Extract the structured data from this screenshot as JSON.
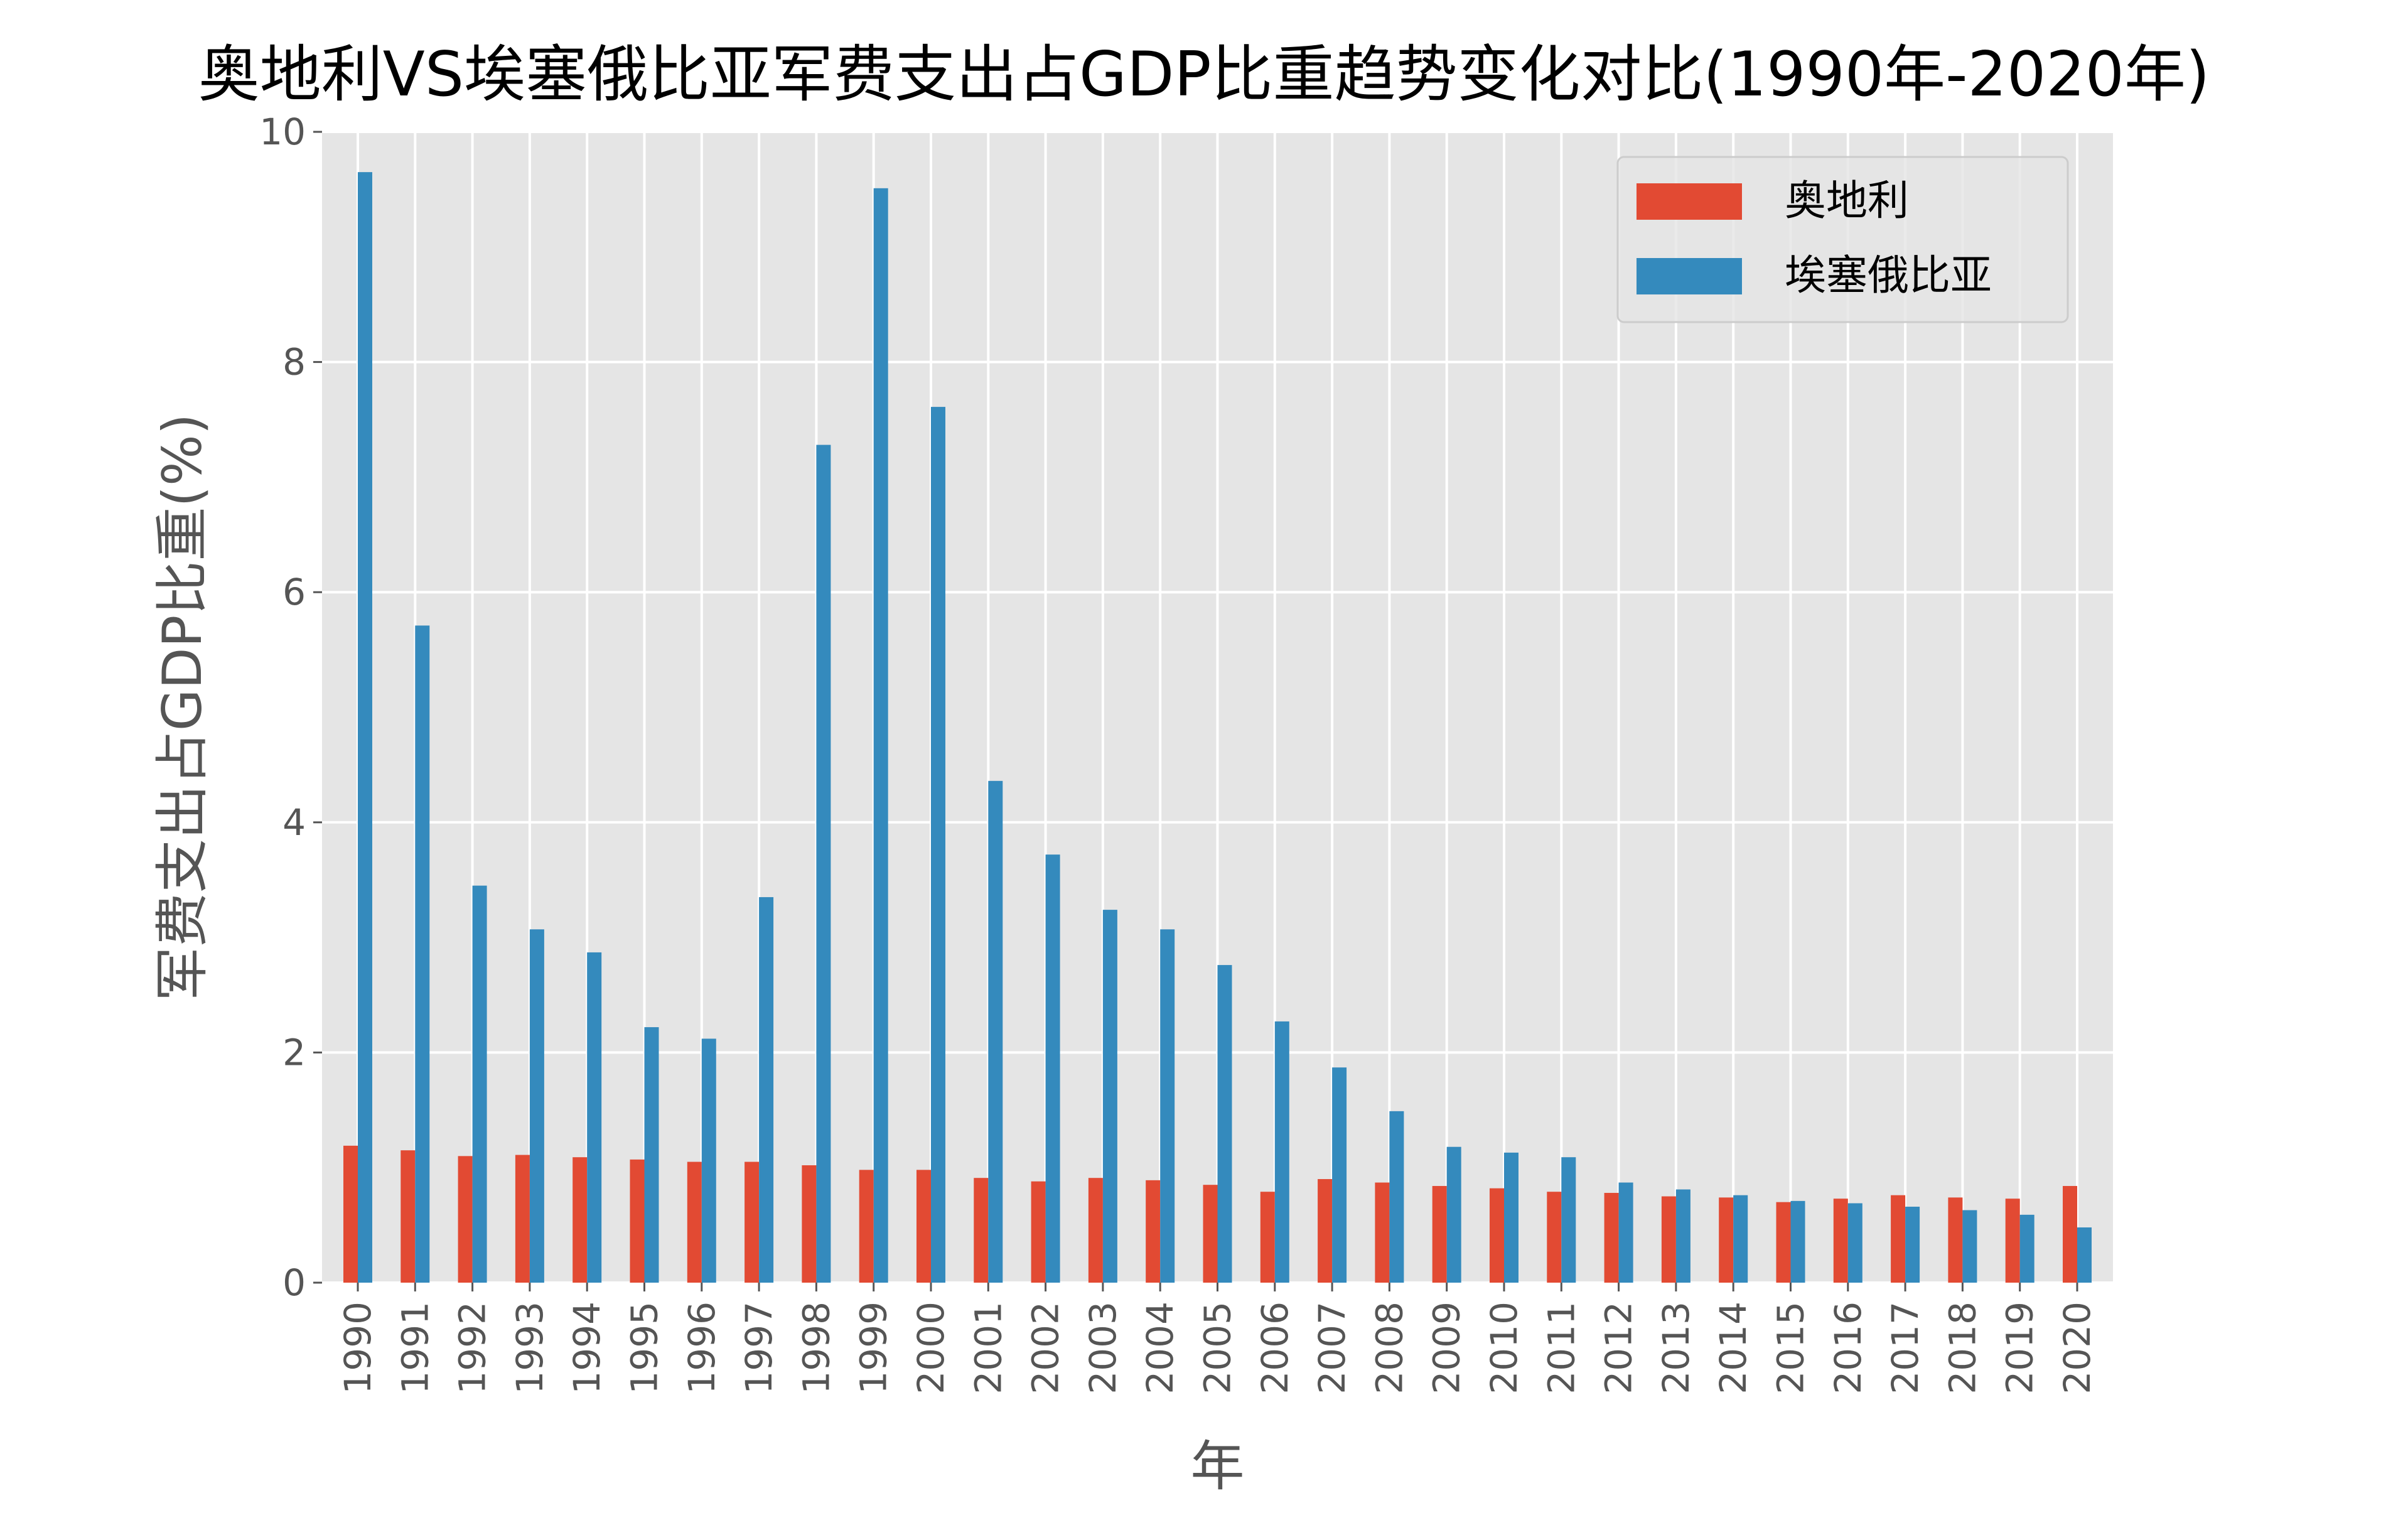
{
  "chart_data": {
    "type": "bar",
    "title": "奥地利VS埃塞俄比亚军费支出占GDP比重趋势变化对比(1990年-2020年)",
    "xlabel": "年",
    "ylabel": "军费支出占GDP比重(%)",
    "ylim": [
      0,
      10
    ],
    "yticks": [
      "0",
      "2",
      "4",
      "6",
      "8",
      "10"
    ],
    "grid": true,
    "legend_position": "top-right",
    "categories": [
      "1990",
      "1991",
      "1992",
      "1993",
      "1994",
      "1995",
      "1996",
      "1997",
      "1998",
      "1999",
      "2000",
      "2001",
      "2002",
      "2003",
      "2004",
      "2005",
      "2006",
      "2007",
      "2008",
      "2009",
      "2010",
      "2011",
      "2012",
      "2013",
      "2014",
      "2015",
      "2016",
      "2017",
      "2018",
      "2019",
      "2020"
    ],
    "series": [
      {
        "name": "奥地利",
        "color": "#E24A33",
        "values": [
          1.19,
          1.15,
          1.1,
          1.11,
          1.09,
          1.07,
          1.05,
          1.05,
          1.02,
          0.98,
          0.98,
          0.91,
          0.88,
          0.91,
          0.89,
          0.85,
          0.79,
          0.9,
          0.87,
          0.84,
          0.82,
          0.79,
          0.78,
          0.75,
          0.74,
          0.7,
          0.73,
          0.76,
          0.74,
          0.73,
          0.84
        ]
      },
      {
        "name": "埃塞俄比亚",
        "color": "#348ABD",
        "values": [
          9.65,
          5.71,
          3.45,
          3.07,
          2.87,
          2.22,
          2.12,
          3.35,
          7.28,
          9.51,
          7.61,
          4.36,
          3.72,
          3.24,
          3.07,
          2.76,
          2.27,
          1.87,
          1.49,
          1.18,
          1.13,
          1.09,
          0.87,
          0.81,
          0.76,
          0.71,
          0.69,
          0.66,
          0.63,
          0.59,
          0.48
        ]
      }
    ]
  },
  "colors": {
    "plot_background": "#E5E5E5",
    "grid": "#FFFFFF",
    "tick_text": "#555555"
  }
}
